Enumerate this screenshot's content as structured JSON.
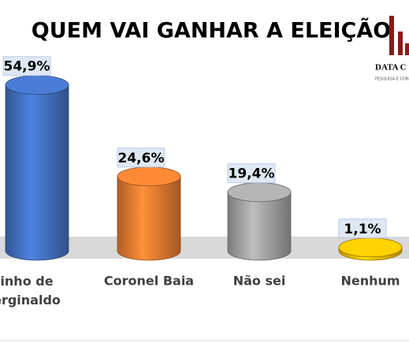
{
  "chart_data": {
    "type": "bar",
    "title": "QUEM VAI GANHAR A ELEIÇÃO",
    "categories": [
      "inho de\nerginaldo",
      "Coronel Baia",
      "Não sei",
      "Nenhum"
    ],
    "values": [
      54.9,
      24.6,
      19.4,
      1.1
    ],
    "value_labels": [
      "54,9%",
      "24,6%",
      "19,4%",
      "1,1%"
    ],
    "colors": [
      "#4472c4",
      "#ed7d31",
      "#a5a5a5",
      "#ffc000"
    ],
    "annotations": [
      "DATA C",
      "PESQUISA E CON"
    ]
  }
}
